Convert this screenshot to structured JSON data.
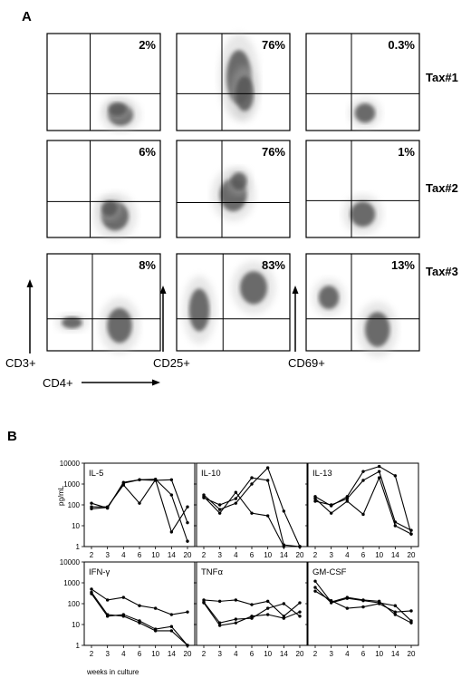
{
  "panel_a": {
    "letter": "A",
    "rows": [
      {
        "label": "Tax#1",
        "percents": [
          "2%",
          "76%",
          "0.3%"
        ]
      },
      {
        "label": "Tax#2",
        "percents": [
          "6%",
          "76%",
          "1%"
        ]
      },
      {
        "label": "Tax#3",
        "percents": [
          "8%",
          "83%",
          "13%"
        ]
      }
    ],
    "axes": {
      "y": "CD3+",
      "x": "CD4+",
      "col2": "CD25+",
      "col3": "CD69+"
    }
  },
  "panel_b": {
    "letter": "B",
    "ylabel": "pg/mL",
    "xlabel": "weeks in culture",
    "chart_data": [
      {
        "type": "line",
        "title": "IL-5",
        "x": [
          "2",
          "3",
          "4",
          "6",
          "10",
          "14",
          "20"
        ],
        "ylim": [
          1,
          10000
        ],
        "yscale": "log",
        "series": [
          {
            "values": [
              120,
              70,
              1200,
              1600,
              1700,
              300,
              1.8
            ]
          },
          {
            "values": [
              80,
              80,
              900,
              120,
              1600,
              5,
              80
            ]
          },
          {
            "values": [
              65,
              75,
              1100,
              1600,
              1500,
              1600,
              14
            ]
          }
        ]
      },
      {
        "type": "line",
        "title": "IL-10",
        "x": [
          "2",
          "3",
          "4",
          "6",
          "10",
          "14",
          "20"
        ],
        "ylim": [
          1,
          10000
        ],
        "yscale": "log",
        "series": [
          {
            "values": [
              300,
              60,
              120,
              1000,
              6000,
              50,
              1
            ]
          },
          {
            "values": [
              250,
              40,
              400,
              40,
              30,
              1,
              1
            ]
          },
          {
            "values": [
              220,
              100,
              200,
              2000,
              1500,
              1.2,
              1
            ]
          }
        ]
      },
      {
        "type": "line",
        "title": "IL-13",
        "x": [
          "2",
          "3",
          "4",
          "6",
          "10",
          "14",
          "20"
        ],
        "ylim": [
          1,
          10000
        ],
        "yscale": "log",
        "series": [
          {
            "values": [
              250,
              90,
              250,
              4000,
              7000,
              2500,
              4
            ]
          },
          {
            "values": [
              200,
              40,
              150,
              35,
              2000,
              10,
              4
            ]
          },
          {
            "values": [
              150,
              100,
              200,
              1500,
              4000,
              15,
              6
            ]
          }
        ]
      },
      {
        "type": "line",
        "title": "IFN-γ",
        "x": [
          "2",
          "3",
          "4",
          "6",
          "10",
          "14",
          "20"
        ],
        "ylim": [
          1,
          10000
        ],
        "yscale": "log",
        "series": [
          {
            "values": [
              500,
              150,
              200,
              80,
              60,
              30,
              40
            ]
          },
          {
            "values": [
              350,
              30,
              25,
              12,
              5,
              5,
              1
            ]
          },
          {
            "values": [
              300,
              25,
              30,
              15,
              6,
              8,
              1
            ]
          }
        ]
      },
      {
        "type": "line",
        "title": "TNFα",
        "x": [
          "2",
          "3",
          "4",
          "6",
          "10",
          "14",
          "20"
        ],
        "ylim": [
          1,
          10000
        ],
        "yscale": "log",
        "series": [
          {
            "values": [
              150,
              130,
              150,
              90,
              130,
              25,
              110
            ]
          },
          {
            "values": [
              120,
              12,
              18,
              20,
              60,
              100,
              25
            ]
          },
          {
            "values": [
              110,
              9,
              12,
              25,
              30,
              20,
              40
            ]
          }
        ]
      },
      {
        "type": "line",
        "title": "GM-CSF",
        "x": [
          "2",
          "3",
          "4",
          "6",
          "10",
          "14",
          "20"
        ],
        "ylim": [
          1,
          10000
        ],
        "yscale": "log",
        "series": [
          {
            "values": [
              1200,
              120,
              200,
              150,
              130,
              30,
              12
            ]
          },
          {
            "values": [
              400,
              140,
              60,
              70,
              100,
              40,
              45
            ]
          },
          {
            "values": [
              600,
              110,
              180,
              140,
              110,
              80,
              15
            ]
          }
        ]
      }
    ],
    "yticks": [
      "10000",
      "1000",
      "100",
      "10",
      "1"
    ]
  }
}
